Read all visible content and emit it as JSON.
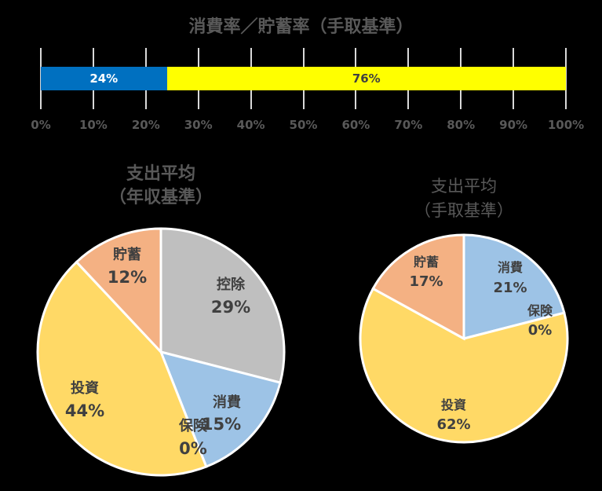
{
  "chart_data": [
    {
      "type": "bar",
      "orientation": "horizontal-stacked-100",
      "title": "消費率／貯蓄率（手取基準）",
      "categories": [
        ""
      ],
      "series": [
        {
          "name": "消費率",
          "values": [
            24
          ],
          "label": "24%",
          "color": "#0070C0",
          "label_color": "#FFFFFF"
        },
        {
          "name": "貯蓄率",
          "values": [
            76
          ],
          "label": "76%",
          "color": "#FFFF00",
          "label_color": "#404040"
        }
      ],
      "xlim": [
        0,
        100
      ],
      "xticks": [
        "0%",
        "10%",
        "20%",
        "30%",
        "40%",
        "50%",
        "60%",
        "70%",
        "80%",
        "90%",
        "100%"
      ],
      "grid": true
    },
    {
      "type": "pie",
      "title": "支出平均（年収基準）",
      "title_lines": [
        "支出平均",
        "（年収基準）"
      ],
      "slices": [
        {
          "label": "控除",
          "value": 29,
          "text": "29%",
          "color": "#BFBFBF"
        },
        {
          "label": "消費",
          "value": 15,
          "text": "15%",
          "color": "#9DC3E6"
        },
        {
          "label": "保険",
          "value": 0,
          "text": "0%",
          "color": "#F4B183"
        },
        {
          "label": "投資",
          "value": 44,
          "text": "44%",
          "color": "#FFD966"
        },
        {
          "label": "貯蓄",
          "value": 12,
          "text": "12%",
          "color": "#F4B183"
        }
      ]
    },
    {
      "type": "pie",
      "title": "支出平均（手取基準）",
      "title_lines": [
        "支出平均",
        "（手取基準）"
      ],
      "slices": [
        {
          "label": "消費",
          "value": 21,
          "text": "21%",
          "color": "#9DC3E6"
        },
        {
          "label": "保険",
          "value": 0,
          "text": "0%",
          "color": "#F4B183"
        },
        {
          "label": "投資",
          "value": 62,
          "text": "62%",
          "color": "#FFD966"
        },
        {
          "label": "貯蓄",
          "value": 17,
          "text": "17%",
          "color": "#F4B183"
        }
      ]
    }
  ],
  "bar": {
    "title": "消費率／貯蓄率（手取基準）",
    "seg1": "24%",
    "seg2": "76%",
    "ticks": [
      "0%",
      "10%",
      "20%",
      "30%",
      "40%",
      "50%",
      "60%",
      "70%",
      "80%",
      "90%",
      "100%"
    ]
  },
  "pie1": {
    "title1": "支出平均",
    "title2": "（年収基準）",
    "labels": [
      {
        "name": "控除",
        "pct": "29%"
      },
      {
        "name": "消費",
        "pct": "15%"
      },
      {
        "name": "保険",
        "pct": "0%"
      },
      {
        "name": "投資",
        "pct": "44%"
      },
      {
        "name": "貯蓄",
        "pct": "12%"
      }
    ]
  },
  "pie2": {
    "title1": "支出平均",
    "title2": "（手取基準）",
    "labels": [
      {
        "name": "消費",
        "pct": "21%"
      },
      {
        "name": "保険",
        "pct": "0%"
      },
      {
        "name": "投資",
        "pct": "62%"
      },
      {
        "name": "貯蓄",
        "pct": "17%"
      }
    ]
  }
}
